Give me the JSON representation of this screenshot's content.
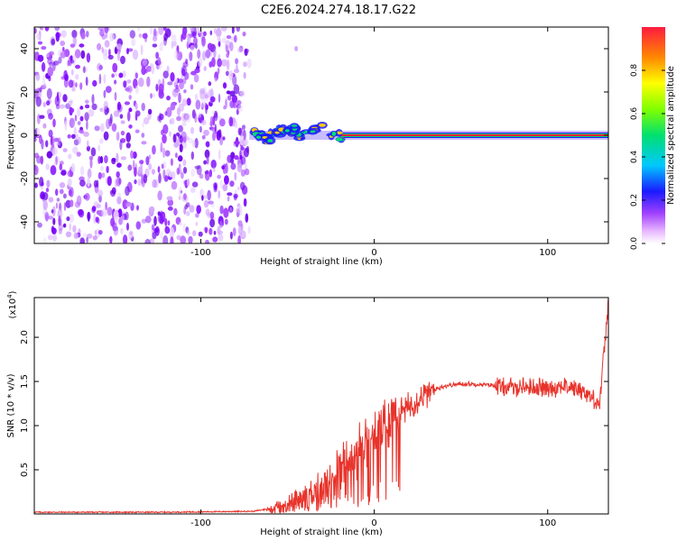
{
  "title": "C2E6.2024.274.18.17.G22",
  "chart_data": [
    {
      "type": "heatmap",
      "xlabel": "Height of straight line (km)",
      "ylabel": "Frequency (Hz)",
      "xlim": [
        -196,
        135
      ],
      "ylim": [
        -50,
        50
      ],
      "xticks": [
        -100,
        0,
        100
      ],
      "yticks": [
        -40,
        -20,
        0,
        20,
        40
      ],
      "colorbar": {
        "label": "Normalized spectral amplitude",
        "range": [
          0.0,
          1.0
        ],
        "ticks": [
          0.0,
          0.2,
          0.4,
          0.6,
          0.8
        ]
      },
      "description_values": {
        "noise_region_x": [
          -196,
          -72
        ],
        "signal_region_x": [
          -72,
          135
        ],
        "signal_frequency_hz": 0
      }
    },
    {
      "type": "line",
      "xlabel": "Height of straight line (km)",
      "ylabel": "SNR (10 * v/v)",
      "ymultiplier": "(x10",
      "ymultiplier_exp": "4",
      "ymultiplier_close": ")",
      "xlim": [
        -196,
        135
      ],
      "ylim": [
        0,
        2.45
      ],
      "xticks": [
        -100,
        0,
        100
      ],
      "yticks": [
        0.5,
        1.0,
        1.5,
        2.0
      ],
      "color": "#e8332b",
      "trend": {
        "x": [
          -196,
          -120,
          -70,
          -60,
          -50,
          -40,
          -30,
          -20,
          -10,
          0,
          10,
          20,
          30,
          40,
          50,
          60,
          70,
          80,
          90,
          100,
          110,
          120,
          130,
          135
        ],
        "y": [
          0.02,
          0.02,
          0.03,
          0.06,
          0.12,
          0.2,
          0.32,
          0.5,
          0.72,
          0.9,
          1.08,
          1.22,
          1.36,
          1.45,
          1.47,
          1.47,
          1.45,
          1.43,
          1.44,
          1.42,
          1.45,
          1.4,
          1.25,
          2.4
        ]
      }
    }
  ]
}
